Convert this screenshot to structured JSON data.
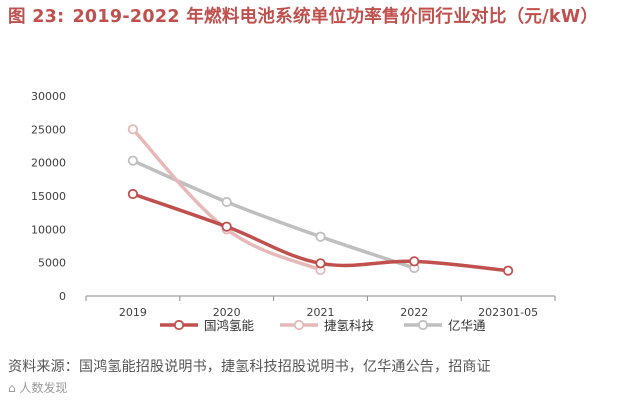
{
  "figure": {
    "label": "图 23:",
    "title": "2019-2022 年燃料电池系统单位功率售价同行业对比（元/kW）",
    "source": "资料来源：国鸿氢能招股说明书，捷氢科技招股说明书，亿华通公告，招商证",
    "watermark": "⌂ 人数发现"
  },
  "chart_data": {
    "type": "line",
    "title": "2019-2022 年燃料电池系统单位功率售价同行业对比（元/kW）",
    "xlabel": "",
    "ylabel": "元/kW",
    "categories": [
      "2019",
      "2020",
      "2021",
      "2022",
      "202301-05"
    ],
    "ylim": [
      0,
      30000
    ],
    "yticks": [
      0,
      5000,
      10000,
      15000,
      20000,
      25000,
      30000
    ],
    "legend_position": "bottom",
    "grid": false,
    "series": [
      {
        "name": "国鸿氢能",
        "color": "#c0504d",
        "values": [
          15300,
          10400,
          4900,
          5200,
          3800
        ]
      },
      {
        "name": "捷氢科技",
        "color": "#e6b9b8",
        "values": [
          25000,
          10000,
          3900,
          null,
          null
        ]
      },
      {
        "name": "亿华通",
        "color": "#bfbfbf",
        "values": [
          20300,
          14100,
          8900,
          4200,
          null
        ]
      }
    ]
  }
}
